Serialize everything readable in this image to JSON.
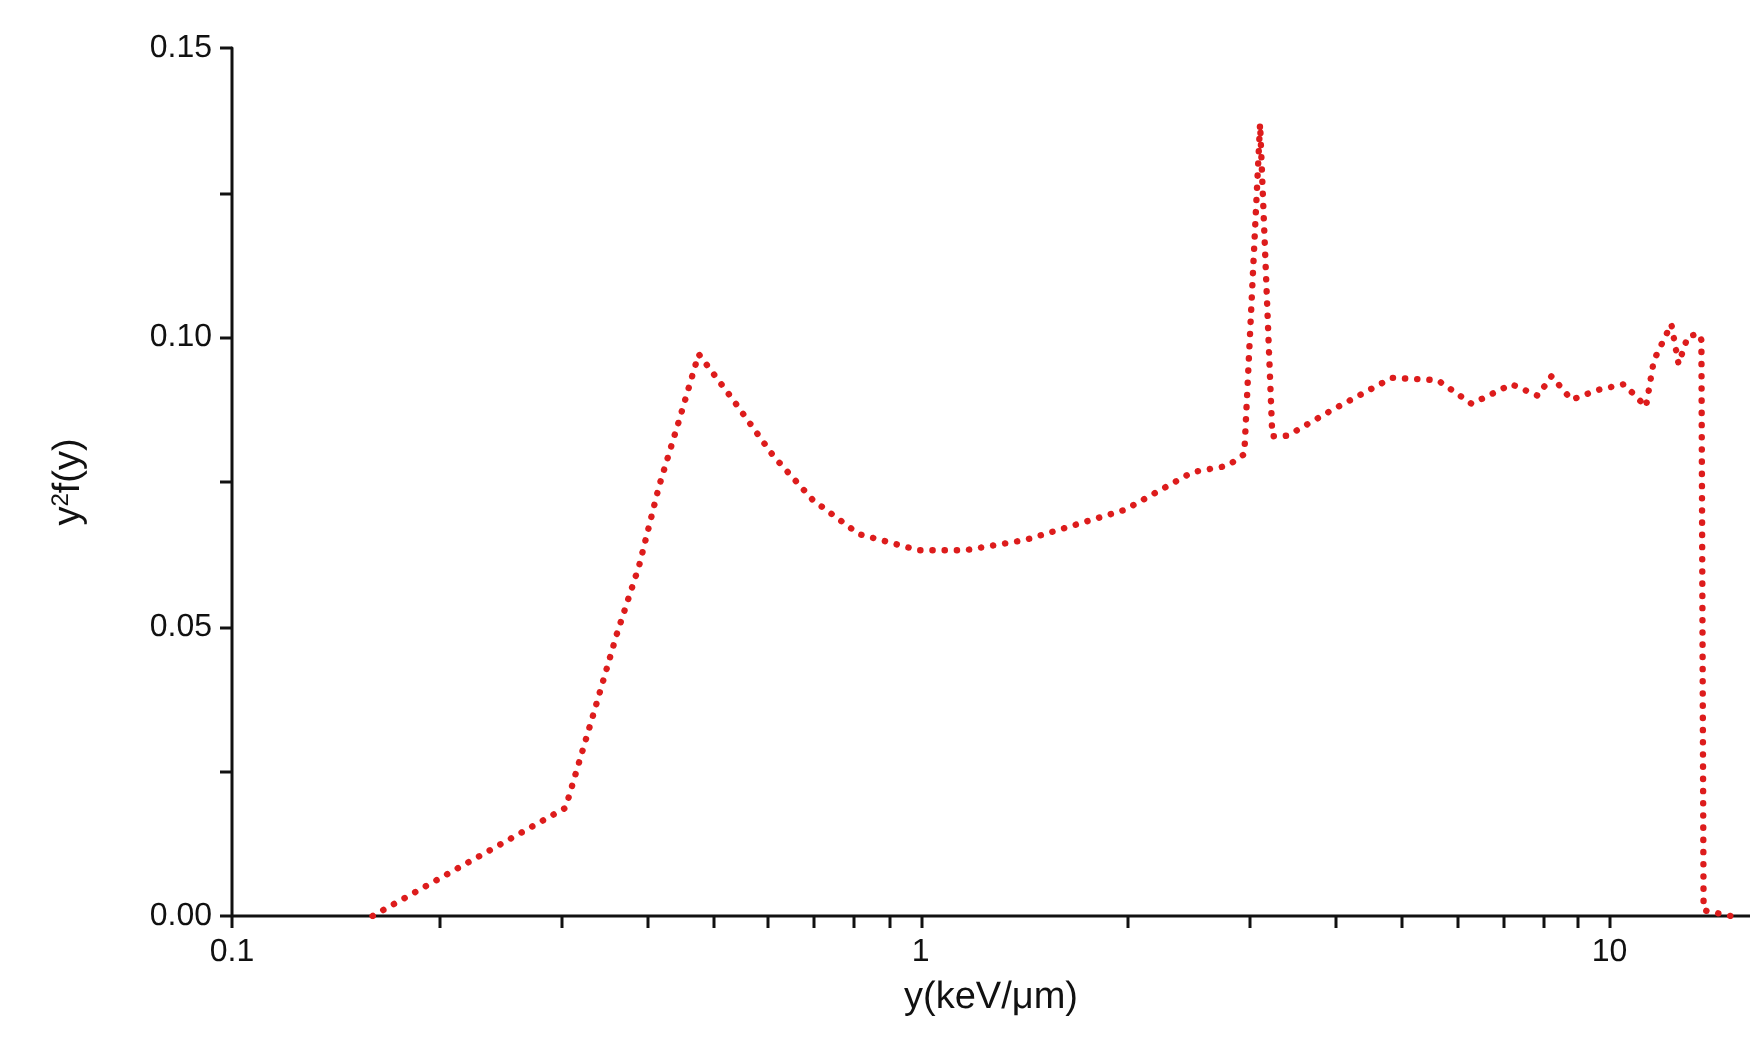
{
  "chart_data": {
    "type": "line",
    "xlabel": "y(keV/μm)",
    "ylabel": "y$^{2}$f(y)",
    "log": "x",
    "line_style": "dotted",
    "marker": "none",
    "xlim": [
      0.1,
      16
    ],
    "ylim": [
      0,
      0.15
    ],
    "xticks": [
      0.1,
      {
        "value": 0.2,
        "label": null
      },
      {
        "value": 0.3,
        "label": null
      },
      {
        "value": 0.4,
        "label": null
      },
      {
        "value": 0.5,
        "label": null
      },
      {
        "value": 0.6,
        "label": null
      },
      {
        "value": 0.7,
        "label": null
      },
      {
        "value": 0.8,
        "label": null
      },
      {
        "value": 0.9,
        "label": null
      },
      1,
      {
        "value": 2,
        "label": null
      },
      {
        "value": 3,
        "label": null
      },
      {
        "value": 4,
        "label": null
      },
      {
        "value": 5,
        "label": null
      },
      {
        "value": 6,
        "label": null
      },
      {
        "value": 7,
        "label": null
      },
      {
        "value": 8,
        "label": null
      },
      {
        "value": 9,
        "label": null
      },
      10
    ],
    "yticks": [
      {
        "value": 0,
        "label": "0.00"
      },
      {
        "value": 0.025,
        "label": null
      },
      {
        "value": 0.05,
        "label": "0.05"
      },
      {
        "value": 0.075,
        "label": null
      },
      {
        "value": 0.1,
        "label": "0.10"
      },
      {
        "value": 0.125,
        "label": null
      },
      {
        "value": 0.15,
        "label": "0.15"
      }
    ],
    "series": [
      {
        "color": "#dd1c1c",
        "x": [
          0.16,
          0.305,
          0.335,
          0.362,
          0.39,
          0.417,
          0.446,
          0.476,
          0.534,
          0.611,
          0.697,
          0.813,
          0.993,
          1.16,
          1.42,
          1.98,
          2.48,
          2.79,
          2.95,
          3.11,
          3.24,
          3.41,
          3.95,
          4.83,
          5.63,
          6.31,
          7.21,
          7.87,
          8.24,
          8.81,
          9.61,
          10.5,
          11.3,
          11.6,
          12.3,
          12.6,
          13.0,
          13.5,
          13.6,
          13.7,
          15.0
        ],
        "values": [
          0,
          0.0187,
          0.035,
          0.0487,
          0.0605,
          0.0743,
          0.0857,
          0.0971,
          0.0892,
          0.0795,
          0.0719,
          0.066,
          0.0632,
          0.0632,
          0.065,
          0.0702,
          0.0767,
          0.0778,
          0.0798,
          0.1369,
          0.0829,
          0.083,
          0.0874,
          0.093,
          0.0926,
          0.0885,
          0.0919,
          0.0899,
          0.0933,
          0.0892,
          0.0909,
          0.0919,
          0.088,
          0.096,
          0.1023,
          0.0954,
          0.1002,
          0.1006,
          0.0995,
          0.001,
          0
        ]
      }
    ]
  }
}
